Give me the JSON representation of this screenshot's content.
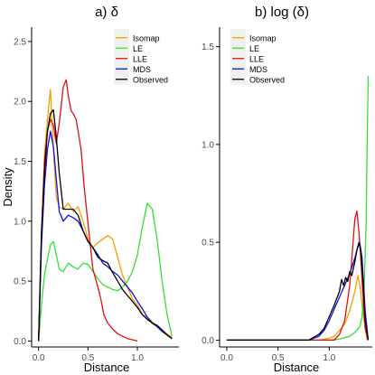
{
  "colors": {
    "Isomap": "#F5A000",
    "LE": "#33E033",
    "LLE": "#E01010",
    "MDS": "#1010E0",
    "Observed": "#000000"
  },
  "chart_data": [
    {
      "type": "line",
      "title": "a) δ",
      "xlabel": "Distance",
      "ylabel": "Density",
      "xlim": [
        -0.07,
        1.42
      ],
      "ylim": [
        -0.05,
        2.62
      ],
      "xticks": [
        "0.0",
        "0.5",
        "1.0"
      ],
      "xtick_values": [
        0,
        0.5,
        1.0
      ],
      "yticks": [
        "0.0",
        "0.5",
        "1.0",
        "1.5",
        "2.0",
        "2.5"
      ],
      "ytick_values": [
        0,
        0.5,
        1.0,
        1.5,
        2.0,
        2.5
      ],
      "legend_position": "top-right",
      "grid": false,
      "series": [
        {
          "name": "Isomap",
          "x": [
            0.0,
            0.03,
            0.06,
            0.09,
            0.12,
            0.15,
            0.18,
            0.21,
            0.25,
            0.3,
            0.35,
            0.4,
            0.45,
            0.5,
            0.55,
            0.6,
            0.65,
            0.7,
            0.75,
            0.8,
            0.85,
            0.9,
            0.95,
            1.0,
            1.05,
            1.1,
            1.15,
            1.2,
            1.25,
            1.3,
            1.35
          ],
          "y": [
            0.0,
            0.9,
            1.55,
            1.85,
            2.1,
            1.6,
            1.2,
            1.12,
            1.1,
            1.15,
            1.08,
            1.12,
            1.0,
            0.85,
            0.78,
            0.82,
            0.85,
            0.88,
            0.85,
            0.7,
            0.55,
            0.45,
            0.35,
            0.3,
            0.22,
            0.2,
            0.16,
            0.12,
            0.09,
            0.06,
            0.03
          ]
        },
        {
          "name": "LE",
          "x": [
            0.0,
            0.03,
            0.06,
            0.09,
            0.12,
            0.15,
            0.18,
            0.21,
            0.25,
            0.3,
            0.35,
            0.4,
            0.45,
            0.5,
            0.55,
            0.6,
            0.65,
            0.7,
            0.75,
            0.8,
            0.85,
            0.9,
            0.95,
            1.0,
            1.05,
            1.1,
            1.15,
            1.2,
            1.25,
            1.3,
            1.35
          ],
          "y": [
            0.0,
            0.3,
            0.55,
            0.68,
            0.8,
            0.83,
            0.72,
            0.6,
            0.58,
            0.65,
            0.62,
            0.6,
            0.65,
            0.64,
            0.58,
            0.52,
            0.47,
            0.45,
            0.43,
            0.42,
            0.45,
            0.5,
            0.58,
            0.72,
            0.95,
            1.15,
            1.1,
            0.85,
            0.5,
            0.22,
            0.04
          ]
        },
        {
          "name": "LLE",
          "x": [
            0.0,
            0.03,
            0.06,
            0.09,
            0.12,
            0.15,
            0.18,
            0.21,
            0.25,
            0.28,
            0.3,
            0.33,
            0.35,
            0.38,
            0.4,
            0.43,
            0.46,
            0.5,
            0.55,
            0.6,
            0.63,
            0.66,
            0.7,
            0.75,
            0.8,
            0.85,
            0.9,
            0.95,
            1.0
          ],
          "y": [
            0.0,
            0.9,
            1.5,
            1.75,
            1.85,
            1.8,
            1.65,
            1.82,
            2.12,
            2.18,
            2.05,
            1.92,
            1.9,
            1.85,
            1.75,
            1.6,
            1.3,
            0.98,
            0.6,
            0.45,
            0.35,
            0.22,
            0.15,
            0.1,
            0.06,
            0.04,
            0.02,
            0.01,
            0.0
          ]
        },
        {
          "name": "MDS",
          "x": [
            0.0,
            0.03,
            0.06,
            0.09,
            0.12,
            0.15,
            0.18,
            0.21,
            0.25,
            0.3,
            0.35,
            0.4,
            0.45,
            0.5,
            0.55,
            0.6,
            0.65,
            0.7,
            0.75,
            0.8,
            0.85,
            0.9,
            0.95,
            1.0,
            1.05,
            1.1,
            1.15,
            1.2,
            1.25,
            1.3,
            1.35
          ],
          "y": [
            0.0,
            0.8,
            1.3,
            1.6,
            1.75,
            1.62,
            1.35,
            1.08,
            1.0,
            1.05,
            1.03,
            1.0,
            0.92,
            0.83,
            0.78,
            0.72,
            0.65,
            0.62,
            0.58,
            0.55,
            0.5,
            0.45,
            0.4,
            0.33,
            0.27,
            0.2,
            0.15,
            0.12,
            0.08,
            0.05,
            0.02
          ]
        },
        {
          "name": "Observed",
          "x": [
            0.0,
            0.03,
            0.06,
            0.09,
            0.12,
            0.15,
            0.18,
            0.21,
            0.25,
            0.3,
            0.35,
            0.4,
            0.45,
            0.5,
            0.55,
            0.6,
            0.65,
            0.7,
            0.75,
            0.8,
            0.85,
            0.9,
            0.95,
            1.0,
            1.05,
            1.1,
            1.15,
            1.2,
            1.25,
            1.3,
            1.35
          ],
          "y": [
            0.0,
            0.9,
            1.4,
            1.75,
            1.9,
            1.93,
            1.7,
            1.4,
            1.1,
            1.1,
            1.1,
            1.05,
            0.92,
            0.83,
            0.78,
            0.7,
            0.67,
            0.65,
            0.57,
            0.5,
            0.43,
            0.38,
            0.33,
            0.28,
            0.22,
            0.18,
            0.15,
            0.13,
            0.09,
            0.05,
            0.02
          ]
        }
      ]
    },
    {
      "type": "line",
      "title": "b) log (δ)",
      "xlabel": "Distance",
      "ylabel": "",
      "xlim": [
        -0.07,
        1.42
      ],
      "ylim": [
        -0.035,
        1.6
      ],
      "xticks": [
        "0.0",
        "0.5",
        "1.0"
      ],
      "xtick_values": [
        0,
        0.5,
        1.0
      ],
      "yticks": [
        "0.0",
        "0.5",
        "1.0",
        "1.5"
      ],
      "ytick_values": [
        0,
        0.5,
        1.0,
        1.5
      ],
      "legend_position": "top-left",
      "grid": false,
      "series": [
        {
          "name": "Isomap",
          "x": [
            0.0,
            0.9,
            1.0,
            1.05,
            1.1,
            1.15,
            1.2,
            1.25,
            1.28,
            1.3,
            1.32,
            1.35,
            1.37
          ],
          "y": [
            0.0,
            0.0,
            0.01,
            0.02,
            0.05,
            0.08,
            0.15,
            0.25,
            0.33,
            0.28,
            0.18,
            0.06,
            0.0
          ]
        },
        {
          "name": "LE",
          "x": [
            0.0,
            1.0,
            1.1,
            1.2,
            1.25,
            1.3,
            1.32,
            1.34,
            1.36,
            1.37,
            1.38
          ],
          "y": [
            0.0,
            0.0,
            0.005,
            0.02,
            0.04,
            0.07,
            0.12,
            0.25,
            0.6,
            1.0,
            1.35
          ]
        },
        {
          "name": "LLE",
          "x": [
            0.0,
            1.05,
            1.1,
            1.15,
            1.2,
            1.23,
            1.25,
            1.27,
            1.29,
            1.31,
            1.33,
            1.35,
            1.38
          ],
          "y": [
            0.0,
            0.0,
            0.03,
            0.1,
            0.28,
            0.48,
            0.62,
            0.66,
            0.55,
            0.4,
            0.22,
            0.06,
            0.0
          ]
        },
        {
          "name": "MDS",
          "x": [
            0.0,
            0.8,
            0.9,
            0.95,
            1.0,
            1.05,
            1.1,
            1.15,
            1.2,
            1.25,
            1.28,
            1.3,
            1.32,
            1.35,
            1.38
          ],
          "y": [
            0.0,
            0.0,
            0.02,
            0.05,
            0.1,
            0.16,
            0.22,
            0.28,
            0.34,
            0.42,
            0.48,
            0.49,
            0.42,
            0.15,
            0.0
          ]
        },
        {
          "name": "Observed",
          "x": [
            0.0,
            0.8,
            0.9,
            0.95,
            1.0,
            1.05,
            1.1,
            1.12,
            1.14,
            1.16,
            1.18,
            1.2,
            1.22,
            1.25,
            1.27,
            1.29,
            1.31,
            1.33,
            1.35,
            1.38
          ],
          "y": [
            0.0,
            0.0,
            0.03,
            0.06,
            0.12,
            0.18,
            0.25,
            0.31,
            0.28,
            0.32,
            0.3,
            0.35,
            0.33,
            0.4,
            0.46,
            0.5,
            0.45,
            0.3,
            0.1,
            0.0
          ]
        }
      ]
    }
  ]
}
